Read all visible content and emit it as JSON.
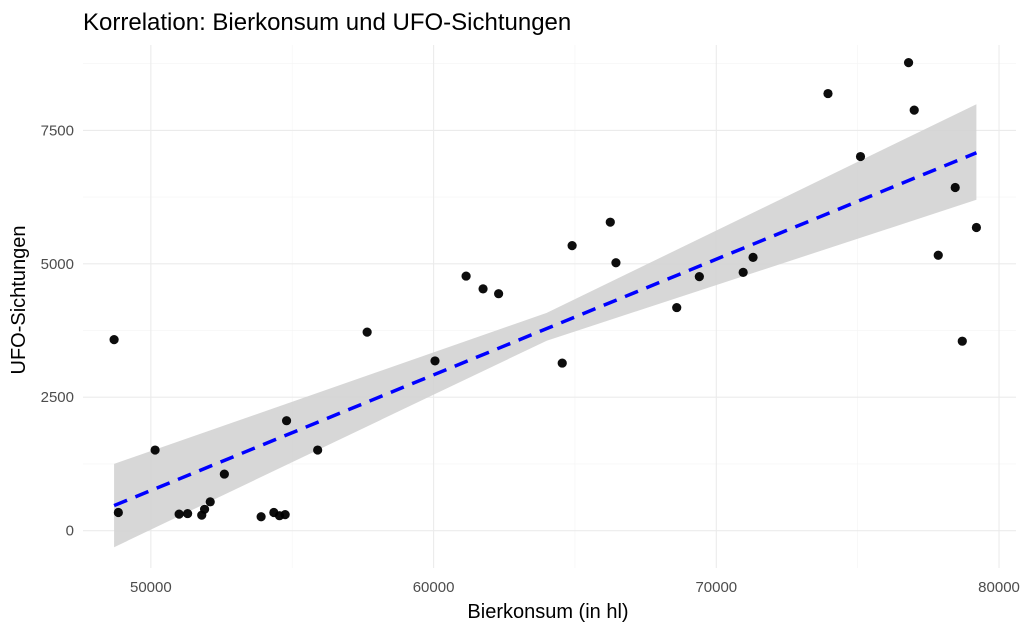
{
  "chart_data": {
    "type": "scatter",
    "title": "Korrelation: Bierkonsum und UFO-Sichtungen",
    "xlabel": "Bierkonsum (in hl)",
    "ylabel": "UFO-Sichtungen",
    "xlim": [
      47600,
      80600
    ],
    "ylim": [
      -700,
      9100
    ],
    "x_ticks": [
      50000,
      60000,
      70000,
      80000
    ],
    "y_ticks": [
      0,
      2500,
      5000,
      7500
    ],
    "x_tick_labels": [
      "50000",
      "60000",
      "70000",
      "80000"
    ],
    "y_tick_labels": [
      "0",
      "2500",
      "5000",
      "7500"
    ],
    "grid": true,
    "legend": "none",
    "colors": {
      "points": "#000000",
      "trend": "#0000ff",
      "band": "#d3d3d3"
    },
    "points": [
      [
        48700,
        3580
      ],
      [
        48850,
        340
      ],
      [
        50150,
        1510
      ],
      [
        51000,
        310
      ],
      [
        51300,
        320
      ],
      [
        51800,
        290
      ],
      [
        51900,
        400
      ],
      [
        52100,
        540
      ],
      [
        52600,
        1060
      ],
      [
        53900,
        260
      ],
      [
        54350,
        340
      ],
      [
        54550,
        280
      ],
      [
        54750,
        300
      ],
      [
        54800,
        2060
      ],
      [
        55900,
        1510
      ],
      [
        57650,
        3720
      ],
      [
        60050,
        3180
      ],
      [
        61150,
        4770
      ],
      [
        61750,
        4530
      ],
      [
        62300,
        4440
      ],
      [
        64550,
        3140
      ],
      [
        64900,
        5340
      ],
      [
        66250,
        5780
      ],
      [
        66450,
        5020
      ],
      [
        68600,
        4180
      ],
      [
        69400,
        4760
      ],
      [
        70950,
        4840
      ],
      [
        71300,
        5120
      ],
      [
        73950,
        8190
      ],
      [
        75100,
        7010
      ],
      [
        76800,
        8770
      ],
      [
        77000,
        7880
      ],
      [
        77850,
        5160
      ],
      [
        78450,
        6430
      ],
      [
        78700,
        3550
      ],
      [
        79200,
        5680
      ]
    ],
    "trend": {
      "type": "linear",
      "x": [
        48700,
        79200
      ],
      "y": [
        470,
        7080
      ],
      "ci_lower": [
        -310,
        6200
      ],
      "ci_upper": [
        1250,
        7990
      ],
      "ci_mid_x": 64000,
      "ci_mid": [
        3560,
        4080
      ],
      "line_style": "dashed"
    }
  }
}
